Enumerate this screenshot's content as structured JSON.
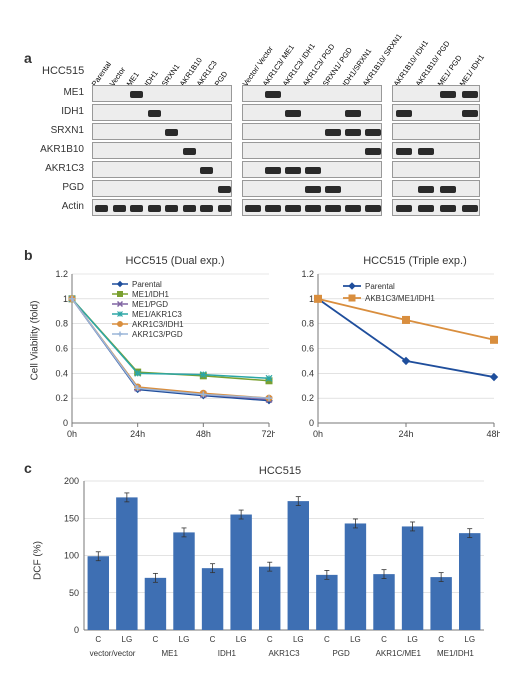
{
  "panel_a": {
    "label": "a",
    "cell_line": "HCC515",
    "lane_labels_group1": [
      "Parental",
      "Vector",
      "ME1",
      "IDH1",
      "SRXN1",
      "AKR1B10",
      "AKR1C3",
      "PGD"
    ],
    "lane_labels_group2": [
      "Vector/ Vector",
      "AKR1C3/ ME1",
      "AKR1C3/ IDH1",
      "AKR1C3/ PGD",
      "SRXN1/ PGD",
      "IDH1/SRXN1",
      "AKR1B10/ SRXN1"
    ],
    "lane_labels_group3": [
      "AKR1B10/ IDH1",
      "AKR1B10/ PGD",
      "ME1/ PGD",
      "ME1/ IDH1"
    ],
    "row_labels": [
      "ME1",
      "IDH1",
      "SRXN1",
      "AKR1B10",
      "AKR1C3",
      "PGD",
      "Actin"
    ],
    "strip_bg": "#ededed",
    "band_color": "#2a2a2a",
    "group1_bands": {
      "ME1": [
        2
      ],
      "IDH1": [
        3
      ],
      "SRXN1": [
        4
      ],
      "AKR1B10": [
        5
      ],
      "AKR1C3": [
        6
      ],
      "PGD": [
        7
      ],
      "Actin": [
        0,
        1,
        2,
        3,
        4,
        5,
        6,
        7
      ]
    },
    "group2_bands": {
      "ME1": [
        1
      ],
      "IDH1": [
        2,
        5
      ],
      "SRXN1": [
        4,
        5,
        6
      ],
      "AKR1B10": [
        6
      ],
      "AKR1C3": [
        1,
        2,
        3
      ],
      "PGD": [
        3,
        4
      ],
      "Actin": [
        0,
        1,
        2,
        3,
        4,
        5,
        6
      ]
    },
    "group3_bands": {
      "ME1": [
        2,
        3
      ],
      "IDH1": [
        0,
        3
      ],
      "SRXN1": [],
      "AKR1B10": [
        0,
        1
      ],
      "AKR1C3": [],
      "PGD": [
        1,
        2
      ],
      "Actin": [
        0,
        1,
        2,
        3
      ]
    }
  },
  "panel_b": {
    "label": "b",
    "left": {
      "title": "HCC515 (Dual exp.)",
      "ylabel": "Cell Viability (fold)",
      "x_ticks": [
        "0h",
        "24h",
        "48h",
        "72h"
      ],
      "y_ticks": [
        0,
        0.2,
        0.4,
        0.6,
        0.8,
        1,
        1.2
      ],
      "ylim": [
        0,
        1.2
      ],
      "series": [
        {
          "name": "Parental",
          "color": "#1f4e9c",
          "marker": "diamond",
          "values": [
            1.0,
            0.27,
            0.22,
            0.18
          ]
        },
        {
          "name": "ME1/IDH1",
          "color": "#7aa030",
          "marker": "square",
          "values": [
            1.0,
            0.41,
            0.38,
            0.34
          ]
        },
        {
          "name": "ME1/PGD",
          "color": "#8064a2",
          "marker": "x",
          "values": [
            1.0,
            0.28,
            0.23,
            0.19
          ]
        },
        {
          "name": "ME1/AKR1C3",
          "color": "#2ca6a6",
          "marker": "star",
          "values": [
            1.0,
            0.4,
            0.39,
            0.36
          ]
        },
        {
          "name": "AKR1C3/IDH1",
          "color": "#d98e3e",
          "marker": "circle",
          "values": [
            1.0,
            0.29,
            0.24,
            0.2
          ]
        },
        {
          "name": "AKR1C3/PGD",
          "color": "#9bb6d9",
          "marker": "plus",
          "values": [
            1.0,
            0.28,
            0.23,
            0.2
          ]
        }
      ],
      "line_width": 1.5,
      "grid_color": "#d0d0d0"
    },
    "right": {
      "title": "HCC515 (Triple exp.)",
      "x_ticks": [
        "0h",
        "24h",
        "48h"
      ],
      "y_ticks": [
        0,
        0.2,
        0.4,
        0.6,
        0.8,
        1,
        1.2
      ],
      "ylim": [
        0,
        1.2
      ],
      "series": [
        {
          "name": "Parental",
          "color": "#1f4e9c",
          "marker": "diamond",
          "values": [
            1.0,
            0.5,
            0.37
          ]
        },
        {
          "name": "AKB1C3/ME1/IDH1",
          "color": "#d98e3e",
          "marker": "square",
          "values": [
            1.0,
            0.83,
            0.67
          ]
        }
      ],
      "line_width": 1.8,
      "grid_color": "#d0d0d0"
    }
  },
  "panel_c": {
    "label": "c",
    "title": "HCC515",
    "ylabel": "DCF (%)",
    "y_ticks": [
      0,
      50,
      100,
      150,
      200
    ],
    "ylim": [
      0,
      200
    ],
    "groups": [
      "vector/vector",
      "ME1",
      "IDH1",
      "AKR1C3",
      "PGD",
      "AKR1C/ME1",
      "ME1/IDH1"
    ],
    "sub_labels": [
      "C",
      "LG"
    ],
    "values": [
      [
        99,
        178
      ],
      [
        70,
        131
      ],
      [
        83,
        155
      ],
      [
        85,
        173
      ],
      [
        74,
        143
      ],
      [
        75,
        139
      ],
      [
        71,
        130
      ]
    ],
    "error": 6,
    "bar_color": "#3e6fb3",
    "bar_width": 0.75,
    "grid_color": "#c8c8c8",
    "label_fontsize": 8
  }
}
